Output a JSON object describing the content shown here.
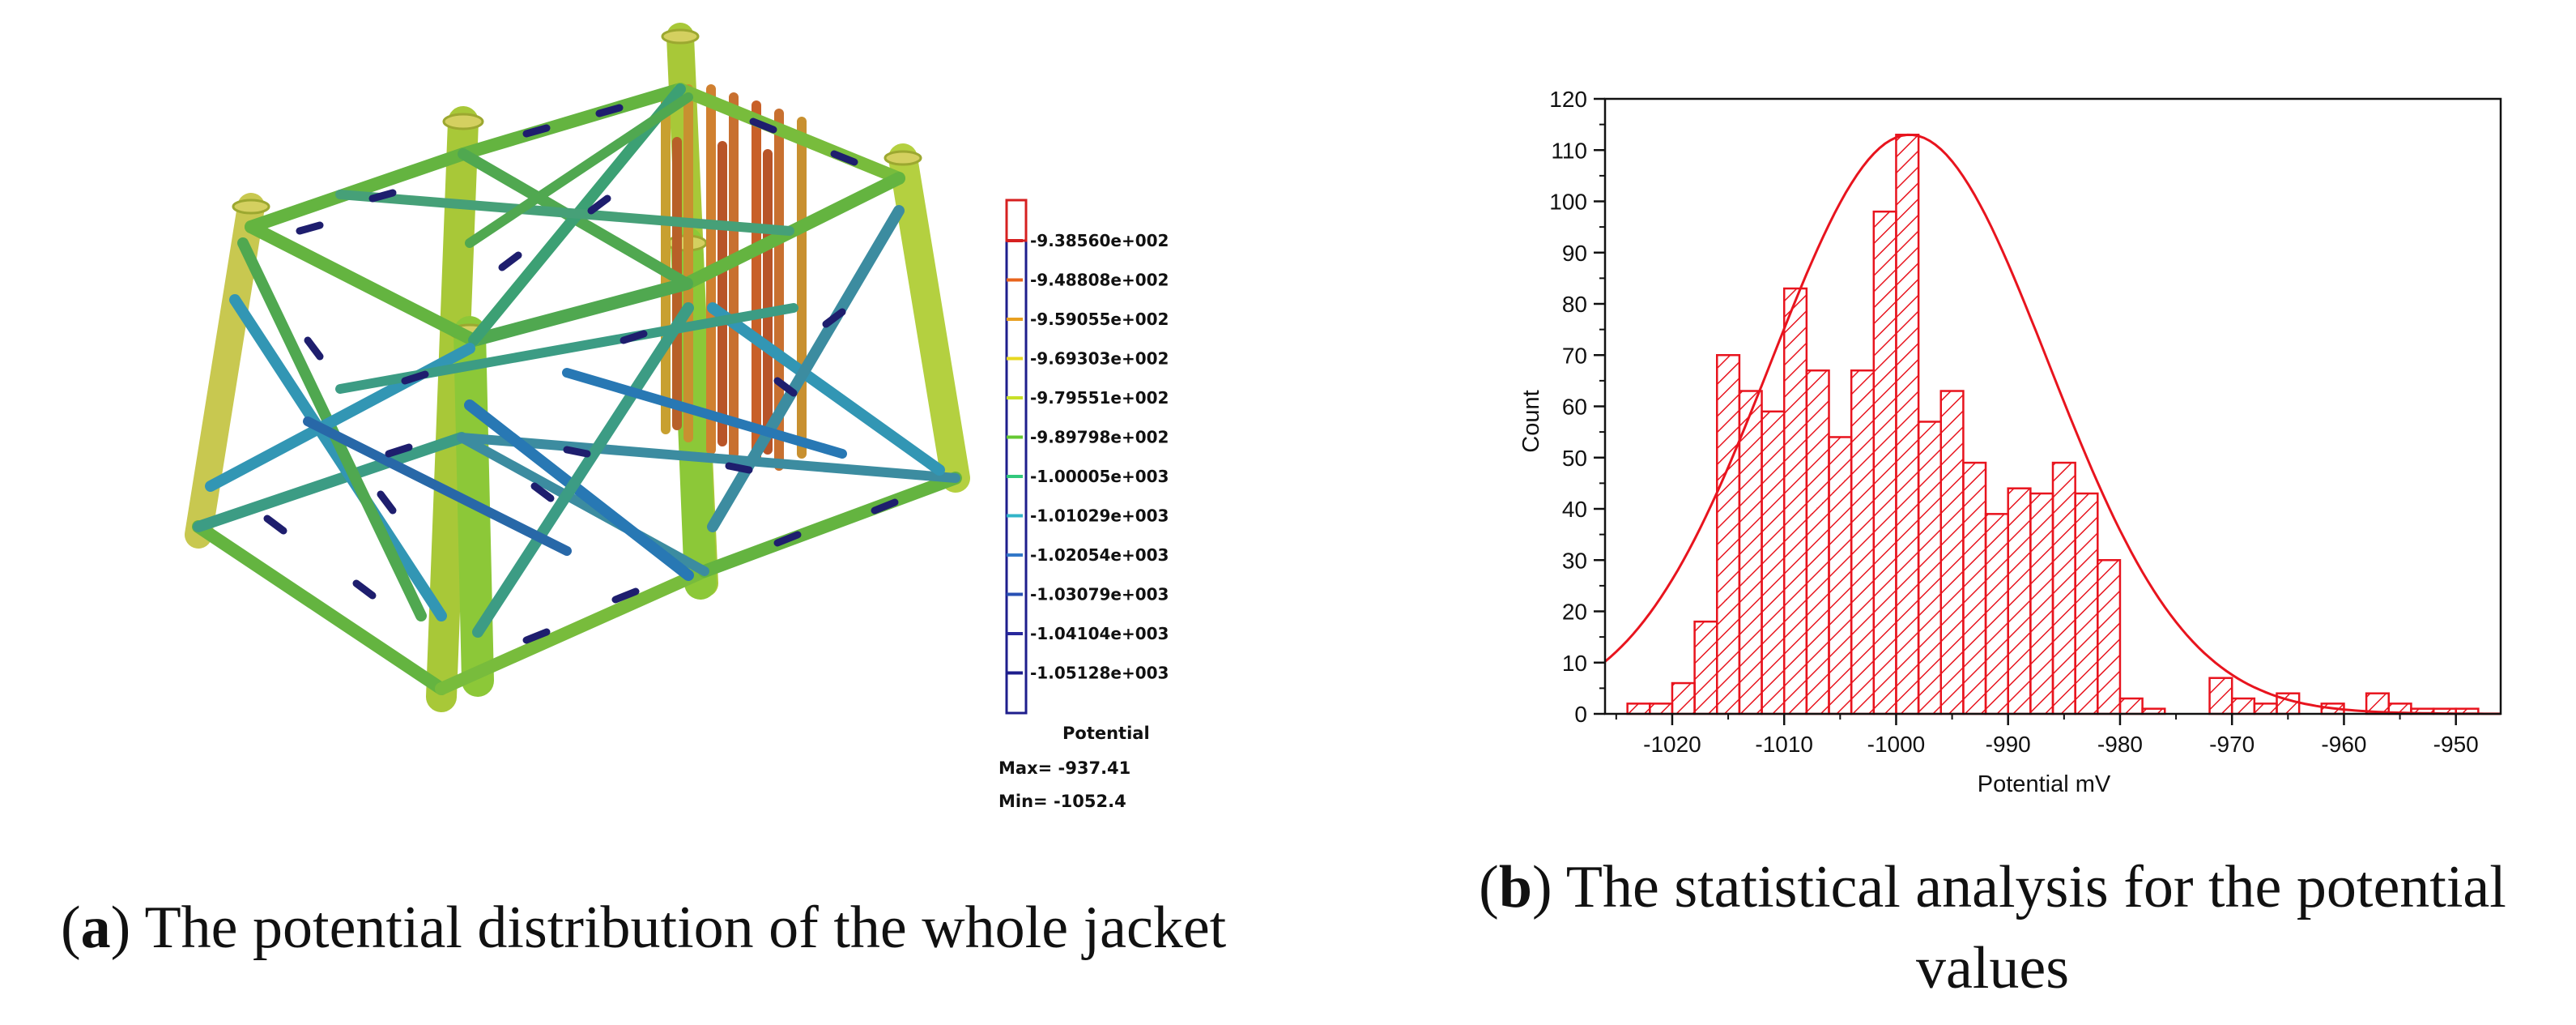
{
  "panel_a": {
    "legend": {
      "title": "Potential",
      "levels": [
        "-9.38560e+002",
        "-9.48808e+002",
        "-9.59055e+002",
        "-9.69303e+002",
        "-9.79551e+002",
        "-9.89798e+002",
        "-1.00005e+003",
        "-1.01029e+003",
        "-1.02054e+003",
        "-1.03079e+003",
        "-1.04104e+003",
        "-1.05128e+003"
      ],
      "colors": [
        "#d62020",
        "#e8641c",
        "#e8a020",
        "#e8d820",
        "#c8e028",
        "#64c832",
        "#32c87c",
        "#32b4c8",
        "#3278c8",
        "#2850b4",
        "#28289c",
        "#1e1e8c"
      ],
      "max_text": "Max= -937.41",
      "min_text": "Min= -1052.4"
    },
    "caption_letter": "a",
    "caption_text": ") The potential distribution of the whole jacket"
  },
  "panel_b": {
    "caption_letter": "b",
    "caption_line1": ") The statistical analysis for the potential",
    "caption_line2": "values"
  },
  "chart_data": {
    "type": "bar",
    "xlabel": "Potential mV",
    "ylabel": "Count",
    "xlim": [
      -1026,
      -946
    ],
    "ylim": [
      0,
      120
    ],
    "xticks": [
      -1020,
      -1010,
      -1000,
      -990,
      -980,
      -970,
      -960,
      -950
    ],
    "yticks": [
      0,
      10,
      20,
      30,
      40,
      50,
      60,
      70,
      80,
      90,
      100,
      110,
      120
    ],
    "bin_width": 2,
    "bin_start": -1024,
    "values": [
      2,
      2,
      6,
      18,
      70,
      63,
      59,
      83,
      67,
      54,
      67,
      98,
      113,
      57,
      63,
      49,
      39,
      44,
      43,
      49,
      43,
      30,
      3,
      1,
      0,
      0,
      7,
      3,
      2,
      4,
      0,
      2,
      0,
      4,
      2,
      1,
      1,
      1
    ],
    "fit": {
      "type": "normal",
      "mean": -998.8,
      "sd": 12.4,
      "peak": 113
    },
    "color": "#e8141e",
    "hatch": "diagonal",
    "grid": false
  }
}
